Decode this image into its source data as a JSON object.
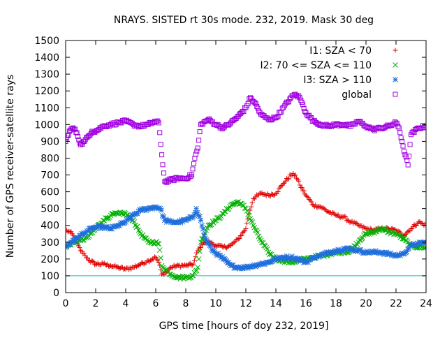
{
  "chart_data": {
    "type": "scatter",
    "title": "NRAYS. SISTED rt 30s mode. 232, 2019. Mask 30 deg",
    "xlabel": "GPS time [hours of doy 232, 2019]",
    "ylabel": "Number of GPS receiver-satellite rays",
    "xlim": [
      0,
      24
    ],
    "ylim": [
      0,
      1500
    ],
    "xticks": [
      0,
      2,
      4,
      6,
      8,
      10,
      12,
      14,
      16,
      18,
      20,
      22,
      24
    ],
    "yticks": [
      0,
      100,
      200,
      300,
      400,
      500,
      600,
      700,
      800,
      900,
      1000,
      1100,
      1200,
      1300,
      1400,
      1500
    ],
    "grid": false,
    "legend_position": "top-right",
    "reference_line": {
      "y": 100,
      "color": "#00c8c8"
    },
    "series": [
      {
        "name": "I1: SZA < 70",
        "color": "#e00000",
        "marker": "plus",
        "x": [
          0,
          0.3,
          0.5,
          0.7,
          1,
          1.3,
          1.6,
          2,
          2.5,
          3,
          3.5,
          4,
          4.5,
          5,
          5.5,
          6,
          6.2,
          6.4,
          6.7,
          7,
          7.5,
          8,
          8.5,
          8.8,
          9.2,
          9.6,
          10,
          10.5,
          11,
          11.5,
          12,
          12.2,
          12.5,
          13,
          13.5,
          14,
          14.5,
          15,
          15.3,
          15.6,
          16,
          16.5,
          17,
          17.5,
          18,
          18.5,
          19,
          19.5,
          20,
          20.5,
          21,
          21.5,
          22,
          22.5,
          23,
          23.5,
          24
        ],
        "y": [
          370,
          360,
          340,
          300,
          250,
          220,
          190,
          170,
          170,
          160,
          150,
          140,
          150,
          170,
          190,
          210,
          180,
          110,
          120,
          150,
          160,
          160,
          170,
          250,
          300,
          300,
          280,
          270,
          280,
          320,
          380,
          470,
          560,
          590,
          580,
          590,
          650,
          700,
          700,
          640,
          580,
          520,
          510,
          480,
          460,
          450,
          420,
          400,
          380,
          370,
          380,
          380,
          370,
          340,
          380,
          420,
          400
        ]
      },
      {
        "name": "I2: 70 <= SZA <= 110",
        "color": "#00b000",
        "marker": "cross",
        "x": [
          0,
          0.5,
          1,
          1.5,
          2,
          2.5,
          3,
          3.5,
          4,
          4.5,
          5,
          5.5,
          6,
          6.2,
          6.4,
          7,
          7.5,
          8,
          8.5,
          8.8,
          9,
          9.5,
          10,
          10.5,
          11,
          11.5,
          12,
          12.5,
          13,
          13.5,
          14,
          14.5,
          15,
          15.5,
          16,
          16.5,
          17,
          17.5,
          18,
          18.5,
          19,
          19.5,
          20,
          20.5,
          21,
          21.5,
          22,
          22.5,
          23,
          23.5,
          24
        ],
        "y": [
          270,
          300,
          310,
          330,
          380,
          430,
          460,
          470,
          470,
          430,
          350,
          300,
          300,
          290,
          160,
          110,
          90,
          90,
          100,
          150,
          300,
          400,
          430,
          470,
          520,
          540,
          500,
          400,
          310,
          240,
          200,
          190,
          180,
          190,
          200,
          210,
          220,
          230,
          240,
          240,
          250,
          300,
          350,
          360,
          380,
          360,
          350,
          320,
          280,
          270,
          270
        ]
      },
      {
        "name": "I3: SZA > 110",
        "color": "#1e6edc",
        "marker": "star",
        "x": [
          0,
          0.5,
          1,
          1.5,
          2,
          2.5,
          3,
          3.5,
          4,
          4.5,
          5,
          5.5,
          6,
          6.3,
          6.6,
          7,
          7.5,
          8,
          8.5,
          8.7,
          9,
          9.3,
          9.8,
          10.5,
          11,
          11.5,
          12,
          12.5,
          13,
          13.5,
          14,
          14.5,
          15,
          15.5,
          16,
          16.5,
          17,
          17.5,
          18,
          18.5,
          19,
          19.5,
          20,
          20.5,
          21,
          21.5,
          22,
          22.5,
          23,
          23.5,
          24
        ],
        "y": [
          270,
          310,
          340,
          370,
          390,
          390,
          380,
          400,
          420,
          460,
          490,
          500,
          510,
          500,
          430,
          420,
          420,
          430,
          450,
          500,
          430,
          320,
          250,
          200,
          160,
          150,
          150,
          160,
          170,
          180,
          200,
          210,
          210,
          200,
          180,
          210,
          220,
          240,
          250,
          260,
          260,
          250,
          240,
          240,
          240,
          230,
          220,
          230,
          280,
          290,
          300
        ]
      },
      {
        "name": "global",
        "color": "#a000e0",
        "marker": "square",
        "x": [
          0,
          0.25,
          0.5,
          0.75,
          1,
          1.25,
          1.5,
          1.75,
          2,
          2.5,
          3,
          3.5,
          4,
          4.5,
          5,
          5.5,
          6,
          6.2,
          6.4,
          6.6,
          7,
          7.5,
          8,
          8.4,
          8.6,
          8.8,
          9,
          9.5,
          10,
          10.5,
          11,
          11.5,
          12,
          12.3,
          12.6,
          13,
          13.5,
          14,
          14.5,
          15,
          15.3,
          15.6,
          16,
          16.5,
          17,
          17.5,
          18,
          18.5,
          19,
          19.5,
          20,
          20.5,
          21,
          21.5,
          22,
          22.2,
          22.4,
          22.6,
          22.8,
          23,
          23.5,
          24
        ],
        "y": [
          900,
          960,
          980,
          950,
          880,
          900,
          930,
          960,
          960,
          990,
          1000,
          1010,
          1020,
          1000,
          990,
          1000,
          1020,
          1010,
          820,
          660,
          670,
          680,
          680,
          700,
          800,
          860,
          1000,
          1030,
          1000,
          980,
          1010,
          1050,
          1100,
          1160,
          1130,
          1060,
          1030,
          1040,
          1100,
          1160,
          1180,
          1160,
          1070,
          1020,
          1000,
          990,
          1000,
          1000,
          990,
          1020,
          990,
          970,
          980,
          990,
          1010,
          980,
          900,
          820,
          760,
          940,
          980,
          990
        ]
      }
    ]
  }
}
